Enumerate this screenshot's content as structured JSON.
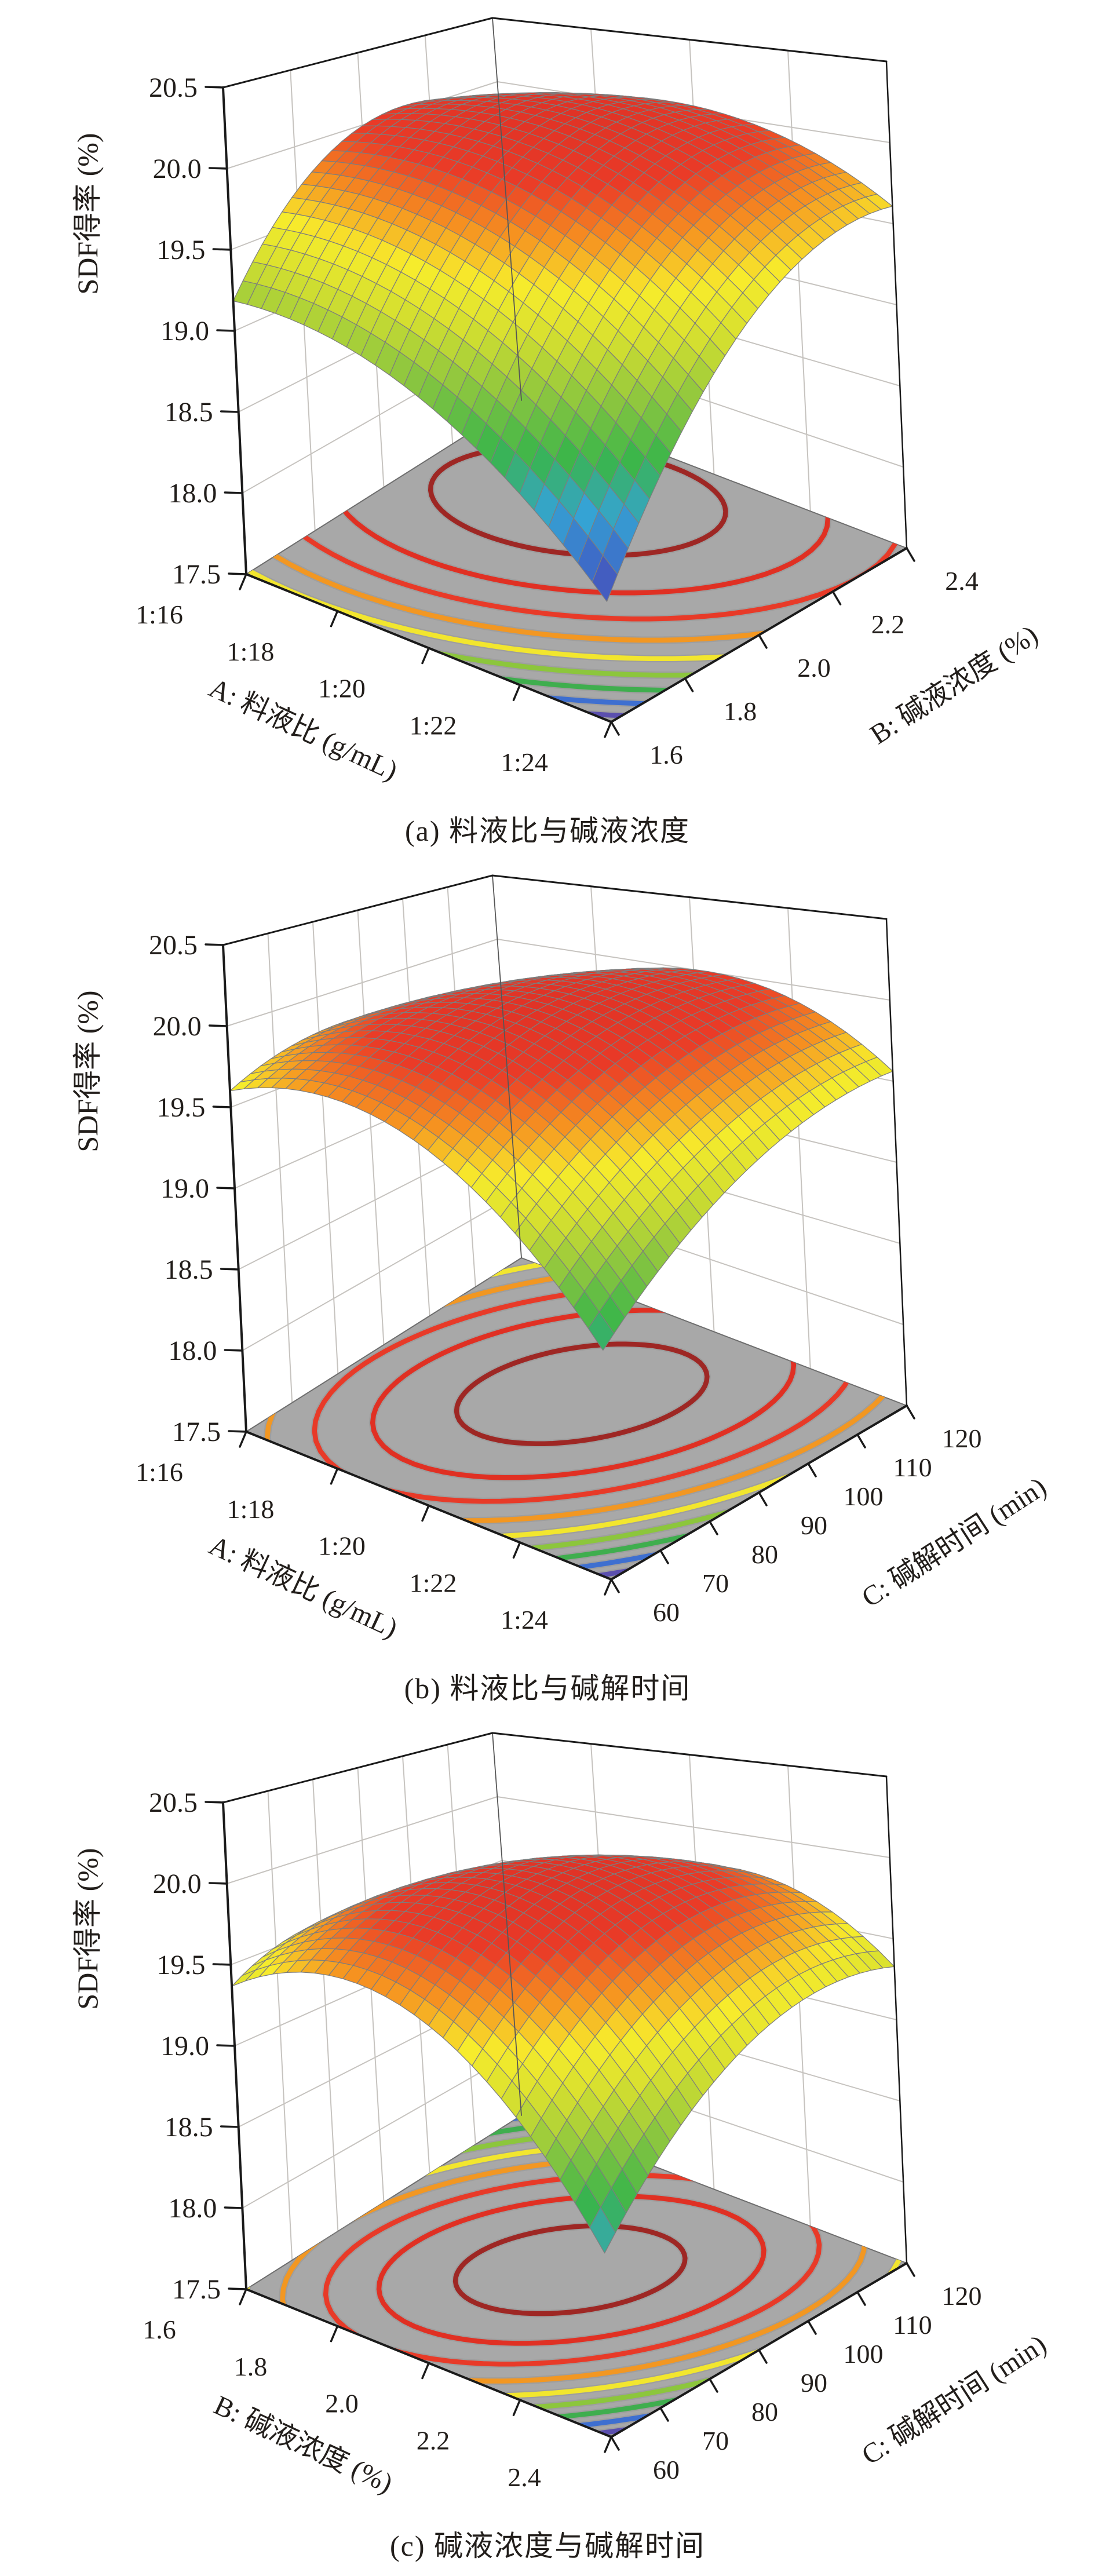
{
  "page": {
    "background": "#ffffff"
  },
  "style": {
    "text_color": "#221e1b",
    "floor_color": "#a8a8a8",
    "box_edge_color": "#1a1a1a",
    "back_edge_color": "#6e6e6e",
    "wall_grid_color": "#c6c3bf",
    "mesh_line_color": "#7d7d7d",
    "contour_halo_color": "#969696"
  },
  "colormap": [
    [
      0.0,
      "#5246ab"
    ],
    [
      0.1,
      "#3f63c6"
    ],
    [
      0.22,
      "#35a3d4"
    ],
    [
      0.34,
      "#39b54a"
    ],
    [
      0.47,
      "#8cc63f"
    ],
    [
      0.6,
      "#d7e02f"
    ],
    [
      0.7,
      "#f7ec2c"
    ],
    [
      0.8,
      "#f69320"
    ],
    [
      0.9,
      "#ea3b27"
    ],
    [
      1.0,
      "#e03326"
    ]
  ],
  "contour_palette_outer_to_inner": [
    "#5b4fae",
    "#3e6fd0",
    "#3fae4e",
    "#8cc63c",
    "#f2e62e",
    "#f29722",
    "#e83a28",
    "#e03023",
    "#9e2724"
  ],
  "z_axis": {
    "label": "SDF得率 (%)",
    "min": 17.5,
    "max": 20.5,
    "step": 0.5,
    "ticks": [
      "17.5",
      "18.0",
      "18.5",
      "19.0",
      "19.5",
      "20.0",
      "20.5"
    ]
  },
  "charts": [
    {
      "id": "a",
      "caption": "(a) 料液比与碱液浓度",
      "x_axis": {
        "label": "A: 料液比 (g/mL)",
        "ticks": [
          "1:16",
          "1:18",
          "1:20",
          "1:22",
          "1:24"
        ]
      },
      "y_axis": {
        "label": "B: 碱液浓度 (%)",
        "ticks": [
          "1.6",
          "1.8",
          "2.0",
          "2.2",
          "2.4"
        ]
      },
      "surface_model": {
        "z0": 20.2,
        "u0": 0.35,
        "v0": 0.72,
        "p": 1.35,
        "q": 2.0,
        "r": -0.74,
        "color_floor_offset": 0.05
      }
    },
    {
      "id": "b",
      "caption": "(b) 料液比与碱解时间",
      "x_axis": {
        "label": "A: 料液比 (g/mL)",
        "ticks": [
          "1:16",
          "1:18",
          "1:20",
          "1:22",
          "1:24"
        ]
      },
      "y_axis": {
        "label": "C: 碱解时间 (min)",
        "ticks": [
          "60",
          "70",
          "80",
          "90",
          "100",
          "110",
          "120"
        ]
      },
      "surface_model": {
        "z0": 20.15,
        "u0": 0.45,
        "v0": 0.6,
        "p": 2.0,
        "q": 1.0,
        "r": -0.8,
        "color_floor_offset": 0.45
      }
    },
    {
      "id": "c",
      "caption": "(c) 碱液浓度与碱解时间",
      "x_axis": {
        "label": "B: 碱液浓度 (%)",
        "ticks": [
          "1.6",
          "1.8",
          "2.0",
          "2.2",
          "2.4"
        ]
      },
      "y_axis": {
        "label": "C: 碱解时间 (min)",
        "ticks": [
          "60",
          "70",
          "80",
          "90",
          "100",
          "110",
          "120"
        ]
      },
      "surface_model": {
        "z0": 20.1,
        "u0": 0.48,
        "v0": 0.52,
        "p": 2.6,
        "q": 1.6,
        "r": -1.2,
        "color_floor_offset": 0.4
      }
    }
  ],
  "chart_data": [
    {
      "type": "surface",
      "subtype": "response-surface-3d-with-floor-contours",
      "title": "(a) 料液比与碱液浓度",
      "x": {
        "label": "A: 料液比 (g/mL)",
        "tick_labels": [
          "1:16",
          "1:18",
          "1:20",
          "1:22",
          "1:24"
        ]
      },
      "y": {
        "label": "B: 碱液浓度 (%)",
        "tick_labels": [
          "1.6",
          "1.8",
          "2.0",
          "2.2",
          "2.4"
        ],
        "range": [
          1.6,
          2.4
        ]
      },
      "z": {
        "label": "SDF得率 (%)",
        "range": [
          17.5,
          20.5
        ],
        "tick_step": 0.5
      },
      "surface_z_shown": {
        "min": 18.25,
        "max": 20.2
      },
      "optimum": {
        "x": "≈1:19",
        "y": "≈2.1",
        "z": 20.2
      },
      "approx_corner_z": {
        "x_min_y_min": 19.2,
        "x_max_y_min": 18.3,
        "x_min_y_max": 19.8,
        "x_max_y_max": 19.6
      },
      "n_contour_rings": 9,
      "legend": "none",
      "grid": "back walls + z gridlines"
    },
    {
      "type": "surface",
      "subtype": "response-surface-3d-with-floor-contours",
      "title": "(b) 料液比与碱解时间",
      "x": {
        "label": "A: 料液比 (g/mL)",
        "tick_labels": [
          "1:16",
          "1:18",
          "1:20",
          "1:22",
          "1:24"
        ]
      },
      "y": {
        "label": "C: 碱解时间 (min)",
        "tick_labels": [
          "60",
          "70",
          "80",
          "90",
          "100",
          "110",
          "120"
        ],
        "range": [
          60,
          120
        ]
      },
      "z": {
        "label": "SDF得率 (%)",
        "range": [
          17.5,
          20.5
        ],
        "tick_step": 0.5
      },
      "surface_z_shown": {
        "min": 18.9,
        "max": 20.15
      },
      "optimum": {
        "x": "≈1:19.5",
        "y": "≈96",
        "z": 20.15
      },
      "approx_corner_z": {
        "x_min_y_min": 19.6,
        "x_max_y_min": 18.9,
        "x_min_y_max": 19.45,
        "x_max_y_max": 19.55
      },
      "n_contour_rings": 9,
      "legend": "none",
      "grid": "back walls + z gridlines"
    },
    {
      "type": "surface",
      "subtype": "response-surface-3d-with-floor-contours",
      "title": "(c) 碱液浓度与碱解时间",
      "x": {
        "label": "B: 碱液浓度 (%)",
        "tick_labels": [
          "1.6",
          "1.8",
          "2.0",
          "2.2",
          "2.4"
        ],
        "range": [
          1.6,
          2.4
        ]
      },
      "y": {
        "label": "C: 碱解时间 (min)",
        "tick_labels": [
          "60",
          "70",
          "80",
          "90",
          "100",
          "110",
          "120"
        ],
        "range": [
          60,
          120
        ]
      },
      "z": {
        "label": "SDF得率 (%)",
        "range": [
          17.5,
          20.5
        ],
        "tick_step": 0.5
      },
      "surface_z_shown": {
        "min": 18.65,
        "max": 20.1
      },
      "optimum": {
        "x": "≈2.0",
        "y": "≈91",
        "z": 20.1
      },
      "approx_corner_z": {
        "x_min_y_min": 19.4,
        "x_max_y_min": 18.65,
        "x_min_y_max": 19.15,
        "x_max_y_max": 19.35
      },
      "n_contour_rings": 9,
      "legend": "none",
      "grid": "back walls + z gridlines"
    }
  ]
}
